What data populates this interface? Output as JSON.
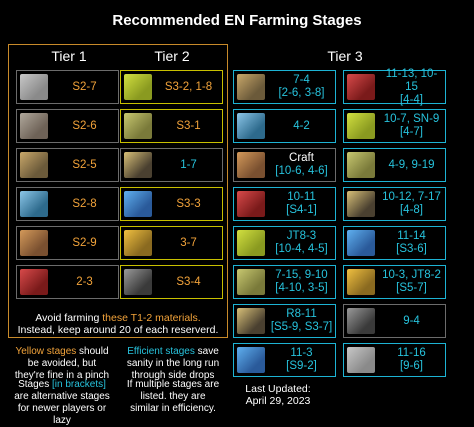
{
  "title": "Recommended EN Farming Stages",
  "tiers": {
    "t1": "Tier 1",
    "t2": "Tier 2",
    "t3": "Tier 3"
  },
  "colors": {
    "gold_border": "#c88a2a",
    "yellow": "#c8c000",
    "cyan": "#1db3d4",
    "orange": "#f2a33a"
  },
  "tier1": [
    {
      "icon": "device-icon",
      "line1": "S2-7",
      "line2": ""
    },
    {
      "icon": "polyketon-icon",
      "line1": "S2-6",
      "line2": ""
    },
    {
      "icon": "orirock-icon",
      "line1": "S2-5",
      "line2": ""
    },
    {
      "icon": "crystal-shard-icon",
      "line1": "S2-8",
      "line2": ""
    },
    {
      "icon": "ester-icon",
      "line1": "S2-9",
      "line2": ""
    },
    {
      "icon": "sugar-cube-icon",
      "line1": "2-3",
      "line2": ""
    }
  ],
  "tier2": [
    {
      "icon": "damaged-device-icon",
      "line1": "S3-2, 1-8",
      "line2": ""
    },
    {
      "icon": "orirock-cube-box-icon",
      "line1": "S3-1",
      "line2": ""
    },
    {
      "icon": "orirock-cluster-icon",
      "line1": "1-7",
      "line2": ""
    },
    {
      "icon": "aketon-crystal-icon",
      "line1": "S3-3",
      "line2": ""
    },
    {
      "icon": "polyester-vial-icon",
      "line1": "3-7",
      "line2": ""
    },
    {
      "icon": "sugar-pack-icon",
      "line1": "S3-4",
      "line2": ""
    }
  ],
  "tier3_left": [
    {
      "icon": "integrated-device-icon",
      "line1": "7-4",
      "line2": "[2-6, 3-8]"
    },
    {
      "icon": "oriron-block-icon",
      "line1": "4-2",
      "line2": ""
    },
    {
      "icon": "orirock-concentration-icon",
      "line1": "Craft",
      "line2": "[10-6, 4-6]"
    },
    {
      "icon": "keton-colloid-icon",
      "line1": "10-11",
      "line2": "[S4-1]"
    },
    {
      "icon": "polyester-lump-icon",
      "line1": "JT8-3",
      "line2": "[10-4, 4-5]"
    },
    {
      "icon": "sugar-lump-icon",
      "line1": "7-15, 9-10",
      "line2": "[4-10, 3-5]"
    },
    {
      "icon": "optimized-device-icon",
      "line1": "R8-11",
      "line2": "[S5-9, S3-7]"
    },
    {
      "icon": "manganese-ore-icon",
      "line1": "11-3",
      "line2": "[S9-2]"
    }
  ],
  "tier3_right": [
    {
      "icon": "grindstone-icon",
      "line1": "11-13, 10-15",
      "line2": "[4-4]"
    },
    {
      "icon": "rma70-12-icon",
      "line1": "10-7, SN-9",
      "line2": "[4-7]"
    },
    {
      "icon": "loxic-kohl-icon",
      "line1": "4-9, 9-19",
      "line2": ""
    },
    {
      "icon": "coagulating-gel-icon",
      "line1": "10-12, 7-17",
      "line2": "[4-8]"
    },
    {
      "icon": "incandescent-alloy-icon",
      "line1": "11-14",
      "line2": "[S3-6]"
    },
    {
      "icon": "crystalline-component-icon",
      "line1": "10-3, JT8-2",
      "line2": "[S5-7]"
    },
    {
      "icon": "solidified-fiber-board-icon",
      "line1": "9-4",
      "line2": ""
    },
    {
      "icon": "semi-synthetic-solvent-icon",
      "line1": "11-16",
      "line2": "[9-6]"
    }
  ],
  "notes": {
    "avoid_pre": "Avoid farming ",
    "avoid_hl": "these T1-2 materials.",
    "avoid_post": "Instead, keep around 20 of each reserverd.",
    "yellow_hl": "Yellow stages",
    "yellow_rest": " should be avoided, but they're fine in a pinch",
    "eff_hl": "Efficient stages",
    "eff_rest": " save sanity in the long run through side drops",
    "bracket_pre": "Stages ",
    "bracket_hl": "[in brackets]",
    "bracket_rest": " are alternative stages for newer players or lazy",
    "multi": "If multiple stages are listed. they are similar in efficiency.",
    "updated_label": "Last Updated:",
    "updated_date": "April 29, 2023"
  }
}
